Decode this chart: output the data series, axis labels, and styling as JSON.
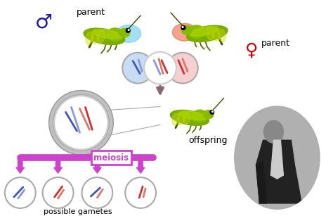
{
  "bg_color": "#ffffff",
  "male_symbol_color": "#1a1aaa",
  "female_symbol_color": "#cc0000",
  "male_parent_label": "parent",
  "female_parent_label": "parent",
  "offspring_label": "offspring",
  "meiosis_label": "meiosis",
  "gametes_label": "possible gametes",
  "meiosis_color": "#cc44cc",
  "chrom_blue": "#4455bb",
  "chrom_red": "#cc3333",
  "chrom_blue2": "#8899dd",
  "chrom_red2": "#dd7766",
  "arrow_down_color": "#886677",
  "grasshopper_body": "#88bb00",
  "grasshopper_head": "#99cc00",
  "grasshopper_stripe": "#ccdd00",
  "grasshopper_dark": "#446600",
  "mag_ring_outer": "#bbbbbb",
  "mag_ring_inner": "#dddddd",
  "circle_edge": "#aaaaaa"
}
